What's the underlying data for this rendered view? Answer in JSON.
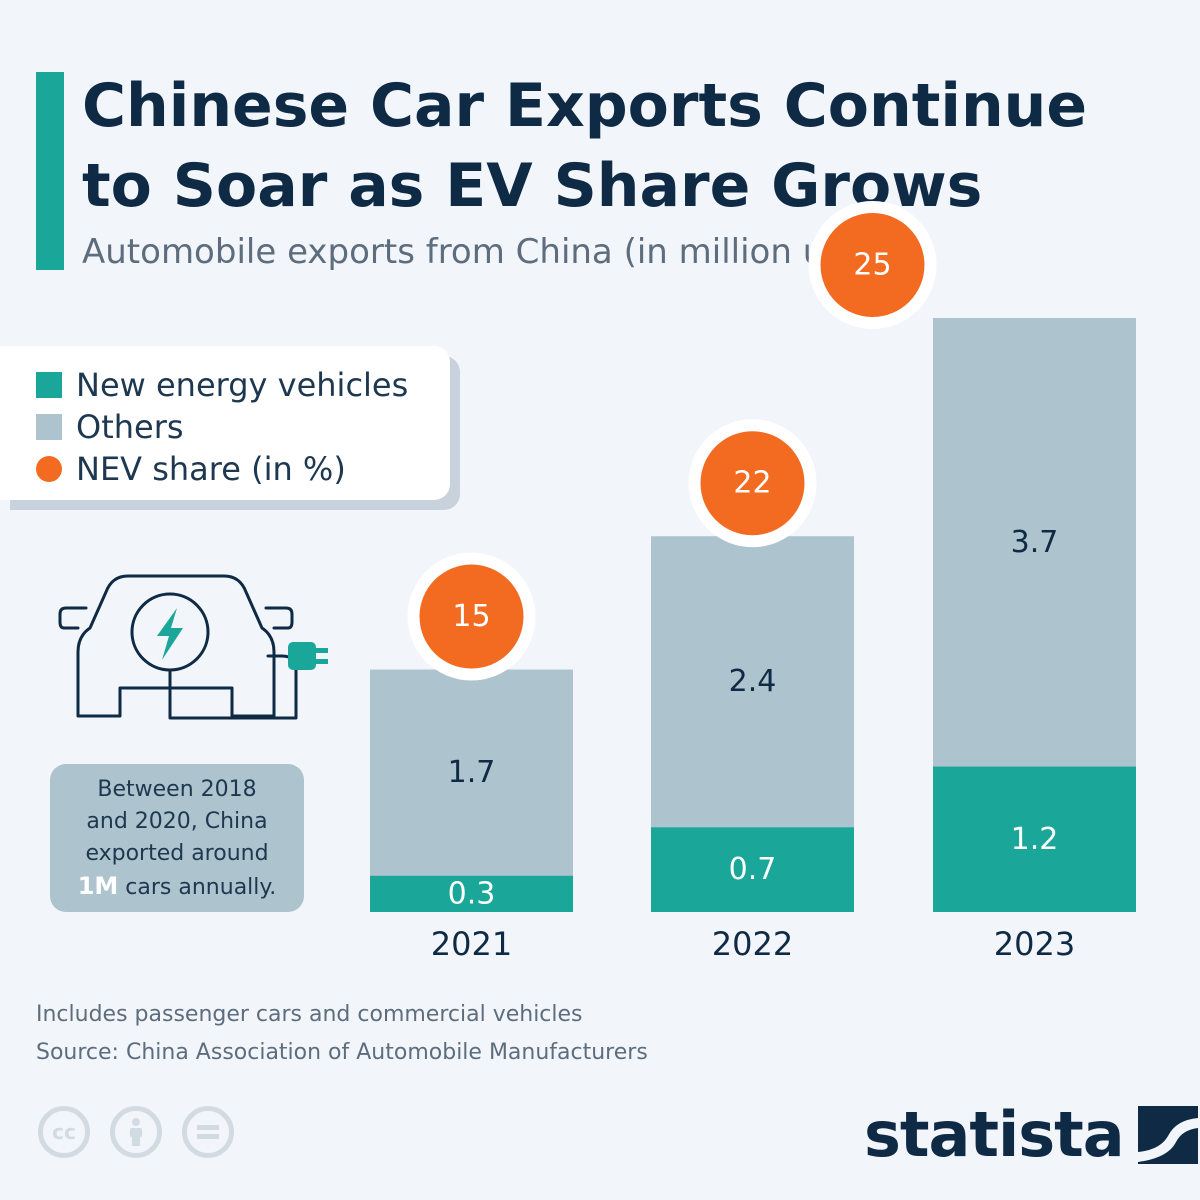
{
  "header": {
    "title_line1": "Chinese Car Exports Continue",
    "title_line2": "to Soar as EV Share Grows",
    "subtitle": "Automobile exports from China (in million units)"
  },
  "legend": {
    "nev": "New energy vehicles",
    "others": "Others",
    "share": "NEV share (in %)"
  },
  "note": {
    "line1": "Between 2018",
    "line2": "and 2020, China",
    "line3": "exported around",
    "highlight": "1M",
    "line4_rest": " cars annually."
  },
  "footer": {
    "note": "Includes passenger cars and commercial vehicles",
    "source": "Source: China Association of Automobile Manufacturers",
    "brand": "statista"
  },
  "colors": {
    "nev": "#1aa79a",
    "others": "#adc3cd",
    "share": "#f26b21",
    "text": "#0f2a45",
    "background": "#f2f6fa"
  },
  "icons": {
    "car": "electric-car-icon",
    "cc": "creative-commons-icon",
    "by": "attribution-icon",
    "nd": "no-derivatives-icon"
  },
  "chart_data": {
    "type": "bar",
    "stacked": true,
    "title": "Chinese Car Exports Continue to Soar as EV Share Grows",
    "subtitle": "Automobile exports from China (in million units)",
    "categories": [
      "2021",
      "2022",
      "2023"
    ],
    "series": [
      {
        "name": "New energy vehicles",
        "values": [
          0.3,
          0.7,
          1.2
        ]
      },
      {
        "name": "Others",
        "values": [
          1.7,
          2.4,
          3.7
        ]
      }
    ],
    "nev_share": {
      "name": "NEV share (in %)",
      "values": [
        15,
        22,
        25
      ]
    },
    "ylim": [
      0,
      4.9
    ],
    "xlabel": "",
    "ylabel": "",
    "grid": false,
    "legend_position": "top-left"
  }
}
